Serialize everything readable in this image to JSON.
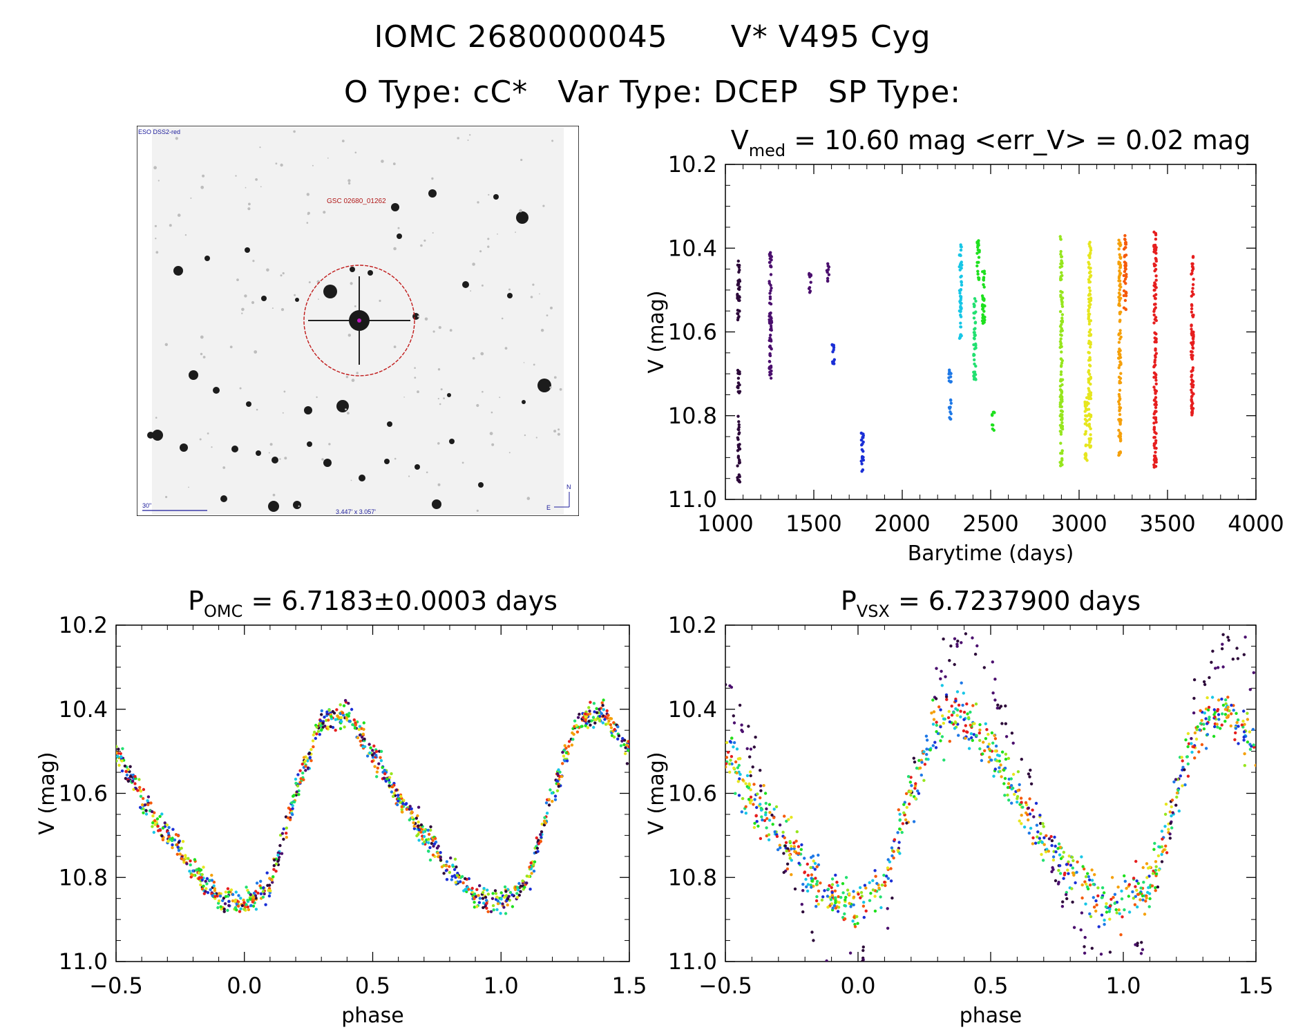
{
  "header": {
    "id_label": "IOMC 2680000045",
    "name_label": "V* V495 Cyg",
    "otype_label": "O Type: cC*",
    "vartype_label": "Var Type: DCEP",
    "sptype_label": "SP Type:"
  },
  "finder_chart": {
    "survey_label": "ESO DSS2-red",
    "object_label": "GSC 02680_01262",
    "scale_label": "30\"",
    "size_label": "3.447' x 3.057'",
    "north_label": "N",
    "east_label": "E"
  },
  "colors": {
    "epoch_palette": [
      "#2d0a3a",
      "#4b0f6e",
      "#1a2fd6",
      "#1e78e6",
      "#17c6e6",
      "#22e070",
      "#1ee01e",
      "#96e61e",
      "#e6e61e",
      "#f5a00a",
      "#f55a0a",
      "#e61e1e"
    ],
    "finder_circle": "#c01818",
    "finder_text": "#b01818"
  },
  "chart_data": [
    {
      "type": "scatter",
      "id": "lightcurve",
      "title_main": "V",
      "title_sub": "med",
      "title_rest": " = 10.60 mag <err_V> = 0.02 mag",
      "xlabel": "Barytime (days)",
      "ylabel": "V (mag)",
      "xlim": [
        1000,
        4000
      ],
      "ylim": [
        11.0,
        10.2
      ],
      "xticks": [
        "1000",
        "1500",
        "2000",
        "2500",
        "3000",
        "3500",
        "4000"
      ],
      "yticks": [
        "10.2",
        "10.4",
        "10.6",
        "10.8",
        "11.0"
      ],
      "groups": [
        {
          "x": 1075,
          "segments": [
            [
              10.43,
              10.58
            ],
            [
              10.68,
              10.75
            ],
            [
              10.8,
              10.96
            ]
          ],
          "color": 0
        },
        {
          "x": 1255,
          "segments": [
            [
              10.41,
              10.72
            ]
          ],
          "color": 1
        },
        {
          "x": 1480,
          "segments": [
            [
              10.46,
              10.51
            ]
          ],
          "color": 1
        },
        {
          "x": 1580,
          "segments": [
            [
              10.43,
              10.48
            ]
          ],
          "color": 1
        },
        {
          "x": 1610,
          "segments": [
            [
              10.62,
              10.68
            ]
          ],
          "color": 2
        },
        {
          "x": 1775,
          "segments": [
            [
              10.84,
              10.94
            ]
          ],
          "color": 2
        },
        {
          "x": 2270,
          "segments": [
            [
              10.67,
              10.72
            ],
            [
              10.76,
              10.81
            ]
          ],
          "color": 3
        },
        {
          "x": 2330,
          "segments": [
            [
              10.39,
              10.63
            ]
          ],
          "color": 4
        },
        {
          "x": 2410,
          "segments": [
            [
              10.52,
              10.72
            ]
          ],
          "color": 5
        },
        {
          "x": 2430,
          "segments": [
            [
              10.38,
              10.48
            ]
          ],
          "color": 6
        },
        {
          "x": 2460,
          "segments": [
            [
              10.45,
              10.59
            ]
          ],
          "color": 6
        },
        {
          "x": 2515,
          "segments": [
            [
              10.79,
              10.84
            ]
          ],
          "color": 6
        },
        {
          "x": 2900,
          "segments": [
            [
              10.37,
              10.92
            ]
          ],
          "color": 7
        },
        {
          "x": 3040,
          "segments": [
            [
              10.75,
              10.91
            ]
          ],
          "color": 8
        },
        {
          "x": 3060,
          "segments": [
            [
              10.38,
              10.89
            ]
          ],
          "color": 8
        },
        {
          "x": 3230,
          "segments": [
            [
              10.38,
              10.9
            ]
          ],
          "color": 9
        },
        {
          "x": 3260,
          "segments": [
            [
              10.37,
              10.55
            ]
          ],
          "color": 10
        },
        {
          "x": 3430,
          "segments": [
            [
              10.36,
              10.93
            ]
          ],
          "color": 11
        },
        {
          "x": 3640,
          "segments": [
            [
              10.41,
              10.8
            ]
          ],
          "color": 11
        }
      ]
    },
    {
      "type": "scatter",
      "id": "phase_omc",
      "title_main": "P",
      "title_sub": "OMC",
      "title_rest": " = 6.7183±0.0003 days",
      "xlabel": "phase",
      "ylabel": "V (mag)",
      "xlim": [
        -0.5,
        1.5
      ],
      "ylim": [
        11.0,
        10.2
      ],
      "xticks": [
        "-0.5",
        "0.0",
        "0.5",
        "1.0",
        "1.5"
      ],
      "yticks": [
        "10.2",
        "10.4",
        "10.6",
        "10.8",
        "11.0"
      ],
      "curve": [
        [
          0.0,
          10.86
        ],
        [
          0.1,
          10.82
        ],
        [
          0.2,
          10.6
        ],
        [
          0.3,
          10.43
        ],
        [
          0.4,
          10.41
        ],
        [
          0.5,
          10.5
        ],
        [
          0.6,
          10.61
        ],
        [
          0.7,
          10.7
        ],
        [
          0.8,
          10.78
        ],
        [
          0.9,
          10.85
        ],
        [
          1.0,
          10.86
        ]
      ],
      "scatter_spread": 0.03
    },
    {
      "type": "scatter",
      "id": "phase_vsx",
      "title_main": "P",
      "title_sub": "VSX",
      "title_rest": " = 6.7237900 days",
      "xlabel": "phase",
      "ylabel": "V (mag)",
      "xlim": [
        -0.5,
        1.5
      ],
      "ylim": [
        11.0,
        10.2
      ],
      "xticks": [
        "-0.5",
        "0.0",
        "0.5",
        "1.0",
        "1.5"
      ],
      "yticks": [
        "10.2",
        "10.4",
        "10.6",
        "10.8",
        "11.0"
      ],
      "curve": [
        [
          0.0,
          10.86
        ],
        [
          0.1,
          10.82
        ],
        [
          0.2,
          10.6
        ],
        [
          0.3,
          10.43
        ],
        [
          0.4,
          10.41
        ],
        [
          0.5,
          10.5
        ],
        [
          0.6,
          10.61
        ],
        [
          0.7,
          10.7
        ],
        [
          0.8,
          10.78
        ],
        [
          0.9,
          10.85
        ],
        [
          1.0,
          10.86
        ]
      ],
      "scatter_spread": 0.06
    }
  ]
}
